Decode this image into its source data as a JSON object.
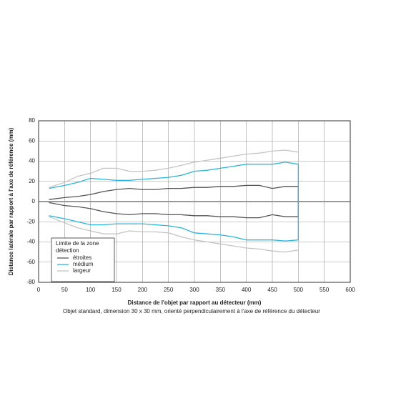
{
  "chart_data": {
    "type": "line",
    "xlabel": "Distance de l'objet par rapport au détecteur (mm)",
    "ylabel": "Distance latérale par rapport à l'axe de référence (mm)",
    "caption": "Objet standard, dimension 30 x 30 mm, orienté perpendiculairement à l'axe de référence du détecteur",
    "legend_title": [
      "Limite de la zone",
      "détection"
    ],
    "legend": "lower left",
    "grid": true,
    "xlim": [
      0,
      600
    ],
    "xticks": [
      0,
      50,
      100,
      150,
      200,
      250,
      300,
      350,
      400,
      450,
      500,
      550,
      600
    ],
    "ylim": [
      -80,
      80
    ],
    "yticks": [
      -80,
      -60,
      -40,
      -20,
      0,
      20,
      40,
      60,
      80
    ],
    "x": [
      20,
      50,
      75,
      100,
      125,
      150,
      175,
      200,
      225,
      250,
      275,
      300,
      325,
      350,
      375,
      400,
      425,
      450,
      475,
      500
    ],
    "series": [
      {
        "name": "étroites",
        "color": "#555555",
        "closed": true,
        "upper": [
          2,
          4,
          5,
          7,
          10,
          12,
          13,
          12,
          12,
          13,
          13,
          14,
          14,
          15,
          15,
          16,
          16,
          13,
          15,
          15
        ],
        "lower": [
          -1,
          -4,
          -5,
          -7,
          -10,
          -12,
          -13,
          -12,
          -12,
          -13,
          -13,
          -14,
          -14,
          -15,
          -15,
          -16,
          -16,
          -13,
          -15,
          -15
        ]
      },
      {
        "name": "médium",
        "color": "#29b5e0",
        "closed": true,
        "upper": [
          13,
          16,
          19,
          23,
          22,
          21,
          21,
          22,
          23,
          24,
          26,
          30,
          31,
          33,
          35,
          37,
          37,
          37,
          39,
          37
        ],
        "lower": [
          -14,
          -17,
          -20,
          -23,
          -23,
          -22,
          -22,
          -22,
          -23,
          -24,
          -26,
          -31,
          -32,
          -33,
          -35,
          -38,
          -38,
          -38,
          -39,
          -38
        ]
      },
      {
        "name": "largeur",
        "color": "#c4c4c4",
        "closed": false,
        "upper": [
          14,
          19,
          25,
          28,
          33,
          33,
          30,
          30,
          31,
          33,
          36,
          39,
          41,
          43,
          45,
          47,
          48,
          50,
          51,
          49
        ],
        "lower": [
          -15,
          -21,
          -26,
          -29,
          -32,
          -32,
          -29,
          -30,
          -30,
          -31,
          -35,
          -38,
          -40,
          -42,
          -44,
          -46,
          -47,
          -49,
          -50,
          -48
        ]
      }
    ]
  }
}
